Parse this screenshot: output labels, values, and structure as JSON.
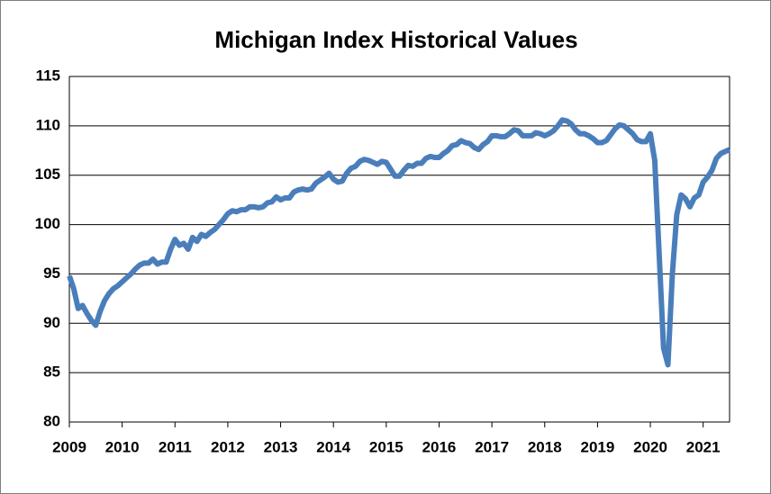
{
  "chart_data": {
    "type": "line",
    "title": "Michigan Index Historical Values",
    "x": [
      2009,
      2009.083,
      2009.167,
      2009.25,
      2009.333,
      2009.417,
      2009.5,
      2009.583,
      2009.667,
      2009.75,
      2009.833,
      2009.917,
      2010,
      2010.083,
      2010.167,
      2010.25,
      2010.333,
      2010.417,
      2010.5,
      2010.583,
      2010.667,
      2010.75,
      2010.833,
      2010.917,
      2011,
      2011.083,
      2011.167,
      2011.25,
      2011.333,
      2011.417,
      2011.5,
      2011.583,
      2011.667,
      2011.75,
      2011.833,
      2011.917,
      2012,
      2012.083,
      2012.167,
      2012.25,
      2012.333,
      2012.417,
      2012.5,
      2012.583,
      2012.667,
      2012.75,
      2012.833,
      2012.917,
      2013,
      2013.083,
      2013.167,
      2013.25,
      2013.333,
      2013.417,
      2013.5,
      2013.583,
      2013.667,
      2013.75,
      2013.833,
      2013.917,
      2014,
      2014.083,
      2014.167,
      2014.25,
      2014.333,
      2014.417,
      2014.5,
      2014.583,
      2014.667,
      2014.75,
      2014.833,
      2014.917,
      2015,
      2015.083,
      2015.167,
      2015.25,
      2015.333,
      2015.417,
      2015.5,
      2015.583,
      2015.667,
      2015.75,
      2015.833,
      2015.917,
      2016,
      2016.083,
      2016.167,
      2016.25,
      2016.333,
      2016.417,
      2016.5,
      2016.583,
      2016.667,
      2016.75,
      2016.833,
      2016.917,
      2017,
      2017.083,
      2017.167,
      2017.25,
      2017.333,
      2017.417,
      2017.5,
      2017.583,
      2017.667,
      2017.75,
      2017.833,
      2017.917,
      2018,
      2018.083,
      2018.167,
      2018.25,
      2018.333,
      2018.417,
      2018.5,
      2018.583,
      2018.667,
      2018.75,
      2018.833,
      2018.917,
      2019,
      2019.083,
      2019.167,
      2019.25,
      2019.333,
      2019.417,
      2019.5,
      2019.583,
      2019.667,
      2019.75,
      2019.833,
      2019.917,
      2020,
      2020.083,
      2020.167,
      2020.25,
      2020.333,
      2020.417,
      2020.5,
      2020.583,
      2020.667,
      2020.75,
      2020.833,
      2020.917,
      2021,
      2021.083,
      2021.167,
      2021.25,
      2021.333,
      2021.417,
      2021.5
    ],
    "series": [
      {
        "name": "Michigan Index",
        "color": "#4a7ebb",
        "values": [
          94.8,
          93.5,
          91.5,
          91.8,
          91.0,
          90.3,
          89.8,
          91.2,
          92.3,
          93.0,
          93.5,
          93.8,
          94.2,
          94.6,
          95.0,
          95.5,
          95.9,
          96.1,
          96.1,
          96.5,
          96.0,
          96.2,
          96.2,
          97.5,
          98.5,
          97.9,
          98.1,
          97.5,
          98.7,
          98.3,
          99.0,
          98.8,
          99.2,
          99.5,
          100.0,
          100.5,
          101.1,
          101.4,
          101.3,
          101.5,
          101.5,
          101.8,
          101.8,
          101.7,
          101.8,
          102.2,
          102.3,
          102.8,
          102.5,
          102.7,
          102.7,
          103.3,
          103.5,
          103.6,
          103.5,
          103.6,
          104.2,
          104.5,
          104.8,
          105.2,
          104.6,
          104.3,
          104.4,
          105.2,
          105.7,
          105.9,
          106.4,
          106.6,
          106.5,
          106.3,
          106.1,
          106.4,
          106.3,
          105.6,
          104.9,
          104.9,
          105.5,
          106.0,
          105.9,
          106.2,
          106.2,
          106.7,
          106.9,
          106.8,
          106.8,
          107.2,
          107.5,
          108.0,
          108.1,
          108.5,
          108.3,
          108.2,
          107.8,
          107.6,
          108.1,
          108.4,
          109.0,
          109.0,
          108.9,
          108.9,
          109.2,
          109.6,
          109.5,
          109.0,
          109.0,
          109.0,
          109.3,
          109.2,
          109.0,
          109.2,
          109.5,
          110.0,
          110.6,
          110.5,
          110.2,
          109.6,
          109.2,
          109.2,
          109.0,
          108.7,
          108.3,
          108.3,
          108.5,
          109.1,
          109.7,
          110.1,
          110.0,
          109.6,
          109.2,
          108.6,
          108.4,
          108.4,
          109.2,
          106.5,
          97.0,
          87.5,
          85.8,
          95.0,
          101.0,
          103.0,
          102.6,
          101.8,
          102.7,
          103.0,
          104.3,
          104.8,
          105.5,
          106.7,
          107.2,
          107.4,
          107.6
        ]
      }
    ],
    "xlim": [
      2009,
      2021.5
    ],
    "xticks": [
      2009,
      2010,
      2011,
      2012,
      2013,
      2014,
      2015,
      2016,
      2017,
      2018,
      2019,
      2020,
      2021
    ],
    "ylim": [
      80,
      115
    ],
    "yticks": [
      80,
      85,
      90,
      95,
      100,
      105,
      110,
      115
    ],
    "grid": true
  }
}
